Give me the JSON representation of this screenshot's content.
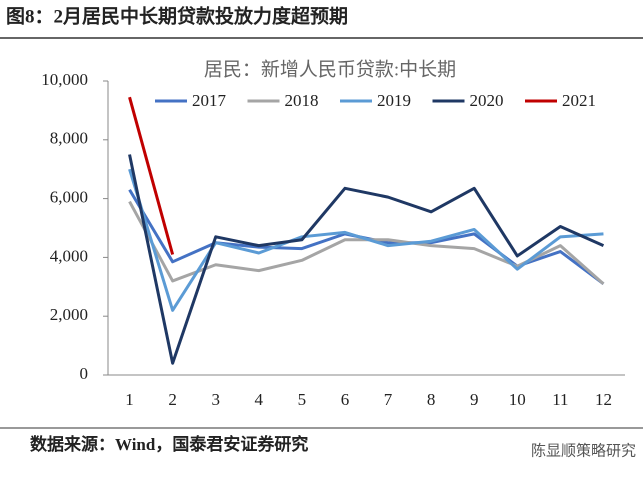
{
  "caption": "图8：2月居民中长期贷款投放力度超预期",
  "source": "数据来源：Wind，国泰君安证券研究",
  "watermark": "陈显顺策略研究",
  "chart_data": {
    "type": "line",
    "title": "居民：新增人民币贷款:中长期",
    "categories": [
      "1",
      "2",
      "3",
      "4",
      "5",
      "6",
      "7",
      "8",
      "9",
      "10",
      "11",
      "12"
    ],
    "series": [
      {
        "name": "2017",
        "color": "#4472c4",
        "values": [
          6300,
          3850,
          4500,
          4350,
          4300,
          4800,
          4500,
          4500,
          4800,
          3700,
          4200,
          3100
        ]
      },
      {
        "name": "2018",
        "color": "#a5a5a5",
        "values": [
          5900,
          3200,
          3750,
          3550,
          3900,
          4600,
          4600,
          4400,
          4300,
          3700,
          4400,
          3100
        ]
      },
      {
        "name": "2019",
        "color": "#5b9bd5",
        "values": [
          7000,
          2200,
          4500,
          4150,
          4700,
          4850,
          4400,
          4550,
          4950,
          3600,
          4700,
          4800
        ]
      },
      {
        "name": "2020",
        "color": "#1f3864",
        "values": [
          7500,
          400,
          4700,
          4400,
          4600,
          6350,
          6050,
          5550,
          6350,
          4050,
          5050,
          4400
        ]
      },
      {
        "name": "2021",
        "color": "#c00000",
        "values": [
          9450,
          4100,
          null,
          null,
          null,
          null,
          null,
          null,
          null,
          null,
          null,
          null
        ]
      }
    ],
    "ylim": [
      0,
      10000
    ],
    "yticks": [
      0,
      {
        "value": 2000,
        "label": "2,000"
      },
      {
        "value": 4000,
        "label": "4,000"
      },
      {
        "value": 6000,
        "label": "6,000"
      },
      {
        "value": 8000,
        "label": "8,000"
      },
      {
        "value": 10000,
        "label": "10,000"
      }
    ],
    "legend": "top"
  }
}
